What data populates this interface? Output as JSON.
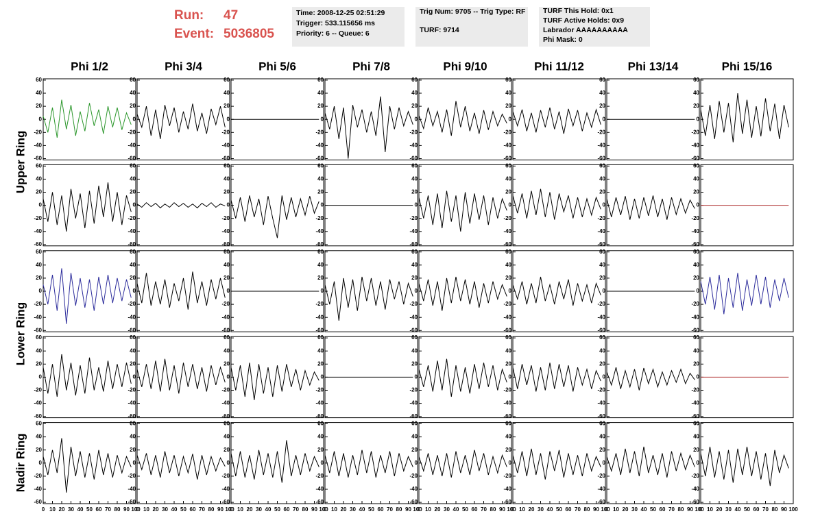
{
  "header": {
    "run_label": "Run:",
    "run": 47,
    "event_label": "Event:",
    "event": 5036805,
    "box1": [
      "Time: 2008-12-25 02:51:29",
      "Trigger: 533.115656 ms",
      "Priority: 6 -- Queue: 6"
    ],
    "box2": [
      "Trig Num: 9705 -- Trig Type: RF",
      "TURF: 9714"
    ],
    "box3": [
      "TURF This Hold: 0x1",
      "TURF Active Holds: 0x9",
      "Labrador AAAAAAAAAA",
      "Phi Mask: 0"
    ]
  },
  "chart_data": {
    "type": "line",
    "columns": [
      "Phi 1/2",
      "Phi 3/4",
      "Phi 5/6",
      "Phi 7/8",
      "Phi 9/10",
      "Phi 11/12",
      "Phi 13/14",
      "Phi 15/16"
    ],
    "rows": [
      "Upper Ring",
      "Lower Ring",
      "Nadir Ring"
    ],
    "xlim": [
      0,
      100
    ],
    "xticks": [
      0,
      10,
      20,
      30,
      40,
      50,
      60,
      70,
      80,
      90,
      100
    ],
    "ylim": [
      -62,
      62
    ],
    "yticks": [
      -60,
      -40,
      -20,
      0,
      20,
      40,
      60
    ],
    "x": [
      0,
      5,
      10,
      15,
      20,
      25,
      30,
      35,
      40,
      45,
      50,
      55,
      60,
      65,
      70,
      75,
      80,
      85,
      90,
      95
    ],
    "panels": [
      [
        {
          "color": "#2a962a",
          "values": [
            5,
            -20,
            18,
            -28,
            30,
            -15,
            22,
            -25,
            12,
            -18,
            25,
            -10,
            15,
            -22,
            20,
            -12,
            18,
            -16,
            10,
            -8
          ]
        },
        {
          "color": "#000000",
          "values": [
            8,
            -12,
            20,
            -25,
            15,
            -30,
            22,
            -10,
            18,
            -20,
            12,
            -15,
            24,
            -18,
            10,
            -22,
            16,
            -8,
            20,
            -12
          ]
        },
        {
          "color": "#000000",
          "values": [
            0,
            0,
            0,
            0,
            0,
            0,
            0,
            0,
            0,
            0,
            0,
            0,
            0,
            0,
            0,
            0,
            0,
            0,
            0,
            0
          ]
        },
        {
          "color": "#000000",
          "values": [
            10,
            -15,
            20,
            -30,
            18,
            -60,
            22,
            -12,
            15,
            -20,
            12,
            -25,
            35,
            -50,
            20,
            -15,
            18,
            -10,
            12,
            -8
          ]
        },
        {
          "color": "#000000",
          "values": [
            6,
            -14,
            18,
            -10,
            12,
            -20,
            15,
            -25,
            28,
            -12,
            20,
            -18,
            10,
            -22,
            14,
            -16,
            12,
            -10,
            8,
            -6
          ]
        },
        {
          "color": "#000000",
          "values": [
            12,
            -10,
            15,
            -18,
            10,
            -20,
            14,
            -12,
            18,
            -15,
            12,
            -22,
            16,
            -10,
            14,
            -18,
            10,
            -12,
            15,
            -8
          ]
        },
        {
          "color": "#000000",
          "values": [
            0,
            0,
            0,
            0,
            0,
            0,
            0,
            0,
            0,
            0,
            0,
            0,
            0,
            0,
            0,
            0,
            0,
            0,
            0,
            0
          ]
        },
        {
          "color": "#000000",
          "values": [
            15,
            -25,
            22,
            -30,
            28,
            -20,
            25,
            -35,
            40,
            -22,
            30,
            -28,
            20,
            -26,
            32,
            -18,
            24,
            -30,
            22,
            -12
          ]
        }
      ],
      [
        {
          "color": "#000000",
          "values": [
            10,
            -25,
            20,
            -30,
            15,
            -40,
            25,
            -20,
            18,
            -35,
            22,
            -28,
            30,
            -18,
            35,
            -25,
            20,
            -30,
            15,
            -10
          ]
        },
        {
          "color": "#000000",
          "values": [
            2,
            -3,
            4,
            -2,
            3,
            -4,
            2,
            -3,
            4,
            -2,
            3,
            -3,
            2,
            -4,
            3,
            -2,
            4,
            -3,
            2,
            -1
          ]
        },
        {
          "color": "#000000",
          "values": [
            8,
            -20,
            12,
            -25,
            15,
            -18,
            10,
            -30,
            14,
            -20,
            -50,
            15,
            -22,
            12,
            -18,
            10,
            -15,
            14,
            -12,
            6
          ]
        },
        {
          "color": "#000000",
          "values": [
            0,
            0,
            0,
            0,
            0,
            0,
            0,
            0,
            0,
            0,
            0,
            0,
            0,
            0,
            0,
            0,
            0,
            0,
            0,
            0
          ]
        },
        {
          "color": "#000000",
          "values": [
            12,
            -20,
            15,
            -30,
            18,
            -35,
            22,
            -25,
            15,
            -40,
            20,
            -28,
            18,
            -22,
            15,
            -30,
            12,
            -20,
            10,
            -8
          ]
        },
        {
          "color": "#000000",
          "values": [
            15,
            -12,
            18,
            -20,
            22,
            -15,
            25,
            -18,
            20,
            -22,
            18,
            -10,
            15,
            -20,
            12,
            -18,
            10,
            -15,
            12,
            -6
          ]
        },
        {
          "color": "#000000",
          "values": [
            10,
            -18,
            12,
            -15,
            14,
            -22,
            10,
            -20,
            12,
            -16,
            15,
            -18,
            10,
            -22,
            12,
            -14,
            10,
            -12,
            8,
            -5
          ]
        },
        {
          "color": "#b03030",
          "values": [
            0,
            0,
            0,
            0,
            0,
            0,
            0,
            0,
            0,
            0,
            0,
            0,
            0,
            0,
            0,
            0,
            0,
            0,
            0,
            0
          ]
        }
      ],
      [
        {
          "color": "#2b2b9b",
          "values": [
            10,
            -20,
            25,
            -30,
            35,
            -50,
            28,
            -22,
            20,
            -25,
            18,
            -30,
            22,
            -20,
            25,
            -18,
            20,
            -15,
            18,
            -10
          ]
        },
        {
          "color": "#000000",
          "values": [
            12,
            -18,
            28,
            -22,
            15,
            -20,
            18,
            -25,
            12,
            -15,
            20,
            -28,
            30,
            -18,
            15,
            -22,
            18,
            -12,
            20,
            -10
          ]
        },
        {
          "color": "#000000",
          "values": [
            0,
            0,
            0,
            0,
            0,
            0,
            0,
            0,
            0,
            0,
            0,
            0,
            0,
            0,
            0,
            0,
            0,
            0,
            0,
            0
          ]
        },
        {
          "color": "#000000",
          "values": [
            10,
            -20,
            15,
            -45,
            20,
            -25,
            18,
            -30,
            22,
            -15,
            20,
            -22,
            15,
            -28,
            18,
            -12,
            15,
            -20,
            12,
            -8
          ]
        },
        {
          "color": "#000000",
          "values": [
            12,
            -15,
            18,
            -22,
            15,
            -30,
            20,
            -18,
            22,
            -15,
            18,
            -20,
            15,
            -25,
            12,
            -18,
            15,
            -12,
            10,
            -8
          ]
        },
        {
          "color": "#000000",
          "values": [
            10,
            -12,
            15,
            -20,
            12,
            -18,
            22,
            -15,
            10,
            -20,
            15,
            -12,
            18,
            -22,
            12,
            -15,
            10,
            -18,
            12,
            -6
          ]
        },
        {
          "color": "#000000",
          "values": [
            0,
            0,
            0,
            0,
            0,
            0,
            0,
            0,
            0,
            0,
            0,
            0,
            0,
            0,
            0,
            0,
            0,
            0,
            0,
            0
          ]
        },
        {
          "color": "#2b2b9b",
          "values": [
            15,
            -20,
            22,
            -28,
            25,
            -35,
            20,
            -25,
            28,
            -30,
            18,
            -22,
            25,
            -20,
            22,
            -25,
            18,
            -15,
            20,
            -10
          ]
        }
      ],
      [
        {
          "color": "#000000",
          "values": [
            15,
            -25,
            20,
            -30,
            35,
            -20,
            22,
            -28,
            18,
            -25,
            30,
            -20,
            15,
            -22,
            25,
            -18,
            20,
            -15,
            22,
            -10
          ]
        },
        {
          "color": "#000000",
          "values": [
            12,
            -15,
            20,
            -18,
            25,
            -22,
            28,
            -20,
            18,
            -25,
            22,
            -15,
            20,
            -18,
            15,
            -22,
            18,
            -12,
            15,
            -8
          ]
        },
        {
          "color": "#000000",
          "values": [
            15,
            -20,
            18,
            -30,
            22,
            -35,
            20,
            -25,
            15,
            -30,
            18,
            -22,
            20,
            -15,
            12,
            -20,
            10,
            -12,
            8,
            -5
          ]
        },
        {
          "color": "#000000",
          "values": [
            0,
            0,
            0,
            0,
            0,
            0,
            0,
            0,
            0,
            0,
            0,
            0,
            0,
            0,
            0,
            0,
            0,
            0,
            0,
            0
          ]
        },
        {
          "color": "#000000",
          "values": [
            12,
            -15,
            18,
            -22,
            25,
            -20,
            28,
            -30,
            18,
            -22,
            15,
            -25,
            20,
            -18,
            22,
            -15,
            18,
            -20,
            12,
            -8
          ]
        },
        {
          "color": "#000000",
          "values": [
            15,
            -18,
            20,
            -12,
            18,
            -22,
            15,
            -20,
            22,
            -18,
            20,
            -15,
            18,
            -22,
            15,
            -12,
            12,
            -18,
            10,
            -6
          ]
        },
        {
          "color": "#000000",
          "values": [
            8,
            -12,
            15,
            -18,
            10,
            -15,
            12,
            -20,
            14,
            -10,
            12,
            -15,
            8,
            -12,
            10,
            -8,
            12,
            -10,
            6,
            -4
          ]
        },
        {
          "color": "#b03030",
          "values": [
            0,
            0,
            0,
            0,
            0,
            0,
            0,
            0,
            0,
            0,
            0,
            0,
            0,
            0,
            0,
            0,
            0,
            0,
            0,
            0
          ]
        }
      ],
      [
        {
          "color": "#000000",
          "values": [
            10,
            -18,
            20,
            -15,
            38,
            -45,
            25,
            -20,
            18,
            -22,
            15,
            -25,
            20,
            -18,
            15,
            -22,
            12,
            -15,
            10,
            -6
          ]
        },
        {
          "color": "#000000",
          "values": [
            12,
            -10,
            15,
            -18,
            12,
            -22,
            18,
            -15,
            12,
            -20,
            10,
            -15,
            14,
            -25,
            12,
            -18,
            10,
            -12,
            8,
            -5
          ]
        },
        {
          "color": "#000000",
          "values": [
            15,
            -20,
            18,
            -22,
            12,
            -25,
            20,
            -18,
            15,
            -22,
            18,
            -30,
            35,
            -20,
            12,
            -18,
            15,
            -12,
            10,
            -6
          ]
        },
        {
          "color": "#000000",
          "values": [
            12,
            -15,
            18,
            -20,
            15,
            -22,
            12,
            -18,
            20,
            -15,
            18,
            -22,
            12,
            -15,
            18,
            -20,
            15,
            -12,
            10,
            -6
          ]
        },
        {
          "color": "#000000",
          "values": [
            10,
            -12,
            15,
            -18,
            12,
            -20,
            15,
            -22,
            18,
            -15,
            12,
            -18,
            20,
            -12,
            15,
            -18,
            10,
            -15,
            12,
            -6
          ]
        },
        {
          "color": "#000000",
          "values": [
            12,
            -15,
            18,
            -20,
            22,
            -18,
            15,
            -25,
            18,
            -12,
            20,
            -22,
            15,
            -18,
            12,
            -20,
            15,
            -12,
            10,
            -6
          ]
        },
        {
          "color": "#000000",
          "values": [
            10,
            -12,
            15,
            -18,
            22,
            -15,
            18,
            -20,
            25,
            -15,
            12,
            -18,
            15,
            -22,
            18,
            -12,
            15,
            -10,
            12,
            -6
          ]
        },
        {
          "color": "#000000",
          "values": [
            15,
            -20,
            25,
            -22,
            18,
            -25,
            20,
            -30,
            22,
            -18,
            25,
            -20,
            18,
            -25,
            15,
            -35,
            20,
            -15,
            12,
            -8
          ]
        }
      ]
    ]
  }
}
